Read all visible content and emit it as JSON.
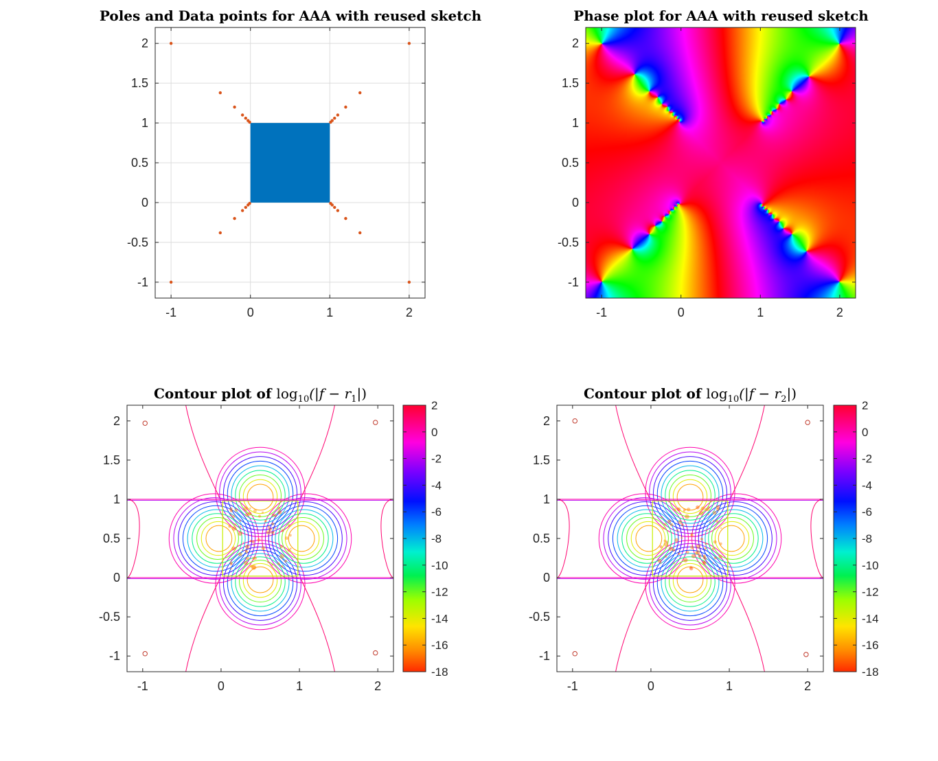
{
  "chart_data": [
    {
      "type": "scatter",
      "id": "poles",
      "title": "Poles and Data points for AAA with reused sketch",
      "xlim": [
        -1.2,
        2.2
      ],
      "ylim": [
        -1.2,
        2.2
      ],
      "xticks": [
        -1,
        0,
        1,
        2
      ],
      "yticks": [
        -1,
        -0.5,
        0,
        0.5,
        1,
        1.5,
        2
      ],
      "xtick_labels": [
        "-1",
        "0",
        "1",
        "2"
      ],
      "ytick_labels": [
        "-1",
        "-0.5",
        "0",
        "0.5",
        "1",
        "1.5",
        "2"
      ],
      "grid": true,
      "series": [
        {
          "name": "Data points",
          "color": "#0072BD",
          "region": {
            "xmin": 0,
            "xmax": 1,
            "ymin": 0,
            "ymax": 1
          }
        },
        {
          "name": "Poles",
          "color": "#D95319",
          "points": [
            [
              -1.0,
              2.0
            ],
            [
              2.0,
              2.0
            ],
            [
              -1.0,
              -1.0
            ],
            [
              2.0,
              -1.0
            ],
            [
              -0.38,
              1.38
            ],
            [
              -0.2,
              1.2
            ],
            [
              -0.1,
              1.1
            ],
            [
              -0.06,
              1.06
            ],
            [
              -0.03,
              1.03
            ],
            [
              -0.01,
              1.01
            ],
            [
              1.38,
              1.38
            ],
            [
              1.2,
              1.2
            ],
            [
              1.1,
              1.1
            ],
            [
              1.06,
              1.06
            ],
            [
              1.03,
              1.03
            ],
            [
              1.01,
              1.01
            ],
            [
              -0.38,
              -0.38
            ],
            [
              -0.2,
              -0.2
            ],
            [
              -0.1,
              -0.1
            ],
            [
              -0.06,
              -0.06
            ],
            [
              -0.03,
              -0.03
            ],
            [
              -0.01,
              -0.01
            ],
            [
              1.38,
              -0.38
            ],
            [
              1.2,
              -0.2
            ],
            [
              1.1,
              -0.1
            ],
            [
              1.06,
              -0.06
            ],
            [
              1.03,
              -0.03
            ],
            [
              1.01,
              -0.01
            ]
          ]
        }
      ]
    },
    {
      "type": "heatmap",
      "id": "phase",
      "title": "Phase plot for AAA with reused sketch",
      "xlim": [
        -1.2,
        2.2
      ],
      "ylim": [
        -1.2,
        2.2
      ],
      "xticks": [
        -1,
        0,
        1,
        2
      ],
      "yticks": [
        -1,
        -0.5,
        0,
        0.5,
        1,
        1.5,
        2
      ],
      "xtick_labels": [
        "-1",
        "0",
        "1",
        "2"
      ],
      "ytick_labels": [
        "-1",
        "-0.5",
        "0",
        "0.5",
        "1",
        "1.5",
        "2"
      ],
      "colormap": "hsv phase"
    },
    {
      "type": "contour",
      "id": "contour1",
      "title_prefix": "Contour plot of ",
      "title_math": "log",
      "title_sub": "10",
      "title_arg": "(|f − r",
      "title_index": "1",
      "title_close": "|)",
      "xlim": [
        -1.2,
        2.2
      ],
      "ylim": [
        -1.2,
        2.2
      ],
      "xticks": [
        -1,
        0,
        1,
        2
      ],
      "yticks": [
        -1,
        -0.5,
        0,
        0.5,
        1,
        1.5,
        2
      ],
      "xtick_labels": [
        "-1",
        "0",
        "1",
        "2"
      ],
      "ytick_labels": [
        "-1",
        "-0.5",
        "0",
        "0.5",
        "1",
        "1.5",
        "2"
      ],
      "levels": [
        0,
        -2,
        -4,
        -6,
        -8,
        -10,
        -12,
        -14,
        -16
      ],
      "colorbar": {
        "min": -18,
        "max": 2,
        "ticks": [
          "2",
          "0",
          "-2",
          "-4",
          "-6",
          "-8",
          "-10",
          "-12",
          "-14",
          "-16",
          "-18"
        ]
      },
      "pole_markers": [
        [
          -0.97,
          1.97
        ],
        [
          1.97,
          1.98
        ],
        [
          -0.97,
          -0.97
        ],
        [
          1.97,
          -0.96
        ]
      ]
    },
    {
      "type": "contour",
      "id": "contour2",
      "title_prefix": "Contour plot of ",
      "title_math": "log",
      "title_sub": "10",
      "title_arg": "(|f − r",
      "title_index": "2",
      "title_close": "|)",
      "xlim": [
        -1.2,
        2.2
      ],
      "ylim": [
        -1.2,
        2.2
      ],
      "xticks": [
        -1,
        0,
        1,
        2
      ],
      "yticks": [
        -1,
        -0.5,
        0,
        0.5,
        1,
        1.5,
        2
      ],
      "xtick_labels": [
        "-1",
        "0",
        "1",
        "2"
      ],
      "ytick_labels": [
        "-1",
        "-0.5",
        "0",
        "0.5",
        "1",
        "1.5",
        "2"
      ],
      "levels": [
        0,
        -2,
        -4,
        -6,
        -8,
        -10,
        -12,
        -14,
        -16
      ],
      "colorbar": {
        "min": -18,
        "max": 2,
        "ticks": [
          "2",
          "0",
          "-2",
          "-4",
          "-6",
          "-8",
          "-10",
          "-12",
          "-14",
          "-16",
          "-18"
        ]
      },
      "pole_markers": [
        [
          -0.97,
          2.0
        ],
        [
          2.0,
          1.98
        ],
        [
          -0.97,
          -0.97
        ],
        [
          1.98,
          -0.98
        ]
      ]
    }
  ]
}
